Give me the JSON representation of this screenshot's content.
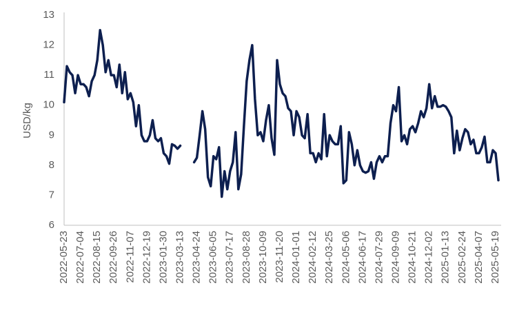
{
  "chart_data": {
    "type": "line",
    "y_label": "USD/kg",
    "categories": [
      "2022-05-23",
      null,
      null,
      null,
      null,
      null,
      "2022-07-04",
      null,
      null,
      null,
      null,
      null,
      "2022-08-15",
      null,
      null,
      null,
      null,
      null,
      "2022-09-26",
      null,
      null,
      null,
      null,
      null,
      "2022-11-07",
      null,
      null,
      null,
      null,
      null,
      "2022-12-19",
      null,
      null,
      null,
      null,
      null,
      "2023-01-30",
      null,
      null,
      null,
      null,
      null,
      "2023-03-13",
      null,
      null,
      null,
      null,
      null,
      "2023-04-24",
      null,
      null,
      null,
      null,
      null,
      "2023-06-05",
      null,
      null,
      null,
      null,
      null,
      "2023-07-17",
      null,
      null,
      null,
      null,
      null,
      "2023-08-28",
      null,
      null,
      null,
      null,
      null,
      "2023-10-09",
      null,
      null,
      null,
      null,
      null,
      "2023-11-20",
      null,
      null,
      null,
      null,
      null,
      "2024-01-01",
      null,
      null,
      null,
      null,
      null,
      "2024-02-12",
      null,
      null,
      null,
      null,
      null,
      "2024-03-25",
      null,
      null,
      null,
      null,
      null,
      "2024-05-06",
      null,
      null,
      null,
      null,
      null,
      "2024-06-17",
      null,
      null,
      null,
      null,
      null,
      "2024-07-29",
      null,
      null,
      null,
      null,
      null,
      "2024-09-09",
      null,
      null,
      null,
      null,
      null,
      "2024-10-21",
      null,
      null,
      null,
      null,
      null,
      "2024-12-02",
      null,
      null,
      null,
      null,
      null,
      "2025-01-13",
      null,
      null,
      null,
      null,
      null,
      "2025-02-24",
      null,
      null,
      null,
      null,
      null,
      "2025-04-07",
      null,
      null,
      null,
      null,
      null,
      "2025-05-19",
      null
    ],
    "series": [
      {
        "color": "#0d1f4f",
        "values": [
          10.1,
          11.3,
          11.1,
          11.0,
          10.4,
          11.0,
          10.7,
          10.7,
          10.6,
          10.3,
          10.8,
          11.0,
          11.5,
          12.5,
          12.0,
          11.1,
          11.5,
          11.0,
          11.0,
          10.6,
          11.35,
          10.4,
          11.1,
          10.2,
          10.4,
          10.1,
          9.3,
          10.0,
          9.0,
          8.8,
          8.8,
          9.0,
          9.5,
          8.9,
          8.8,
          8.9,
          8.4,
          8.3,
          8.05,
          8.7,
          8.65,
          8.55,
          8.65,
          null,
          null,
          null,
          null,
          8.1,
          8.25,
          9.0,
          9.8,
          9.2,
          7.6,
          7.3,
          8.3,
          8.2,
          8.6,
          6.95,
          7.8,
          7.2,
          7.8,
          8.1,
          9.1,
          7.2,
          7.7,
          9.3,
          10.8,
          11.5,
          12.0,
          10.2,
          9.0,
          9.1,
          8.8,
          9.5,
          10.0,
          8.9,
          8.35,
          11.5,
          10.7,
          10.4,
          10.3,
          9.9,
          9.8,
          9.0,
          9.8,
          9.6,
          9.0,
          8.9,
          9.7,
          8.4,
          8.4,
          8.1,
          8.4,
          8.2,
          9.7,
          8.3,
          9.0,
          8.8,
          8.7,
          8.7,
          9.3,
          7.4,
          7.5,
          9.1,
          8.7,
          8.0,
          8.5,
          8.0,
          7.8,
          7.75,
          7.8,
          8.1,
          7.55,
          8.1,
          8.3,
          8.1,
          8.3,
          8.3,
          9.4,
          10.0,
          9.8,
          10.6,
          8.8,
          9.0,
          8.7,
          9.2,
          9.3,
          9.1,
          9.4,
          9.8,
          9.6,
          9.9,
          10.7,
          9.9,
          10.3,
          9.95,
          9.95,
          10.0,
          9.95,
          9.8,
          9.6,
          8.4,
          9.15,
          8.5,
          8.9,
          9.2,
          9.1,
          8.7,
          8.85,
          8.4,
          8.4,
          8.6,
          8.95,
          8.1,
          8.1,
          8.5,
          8.4,
          7.5
        ]
      }
    ],
    "ylim": [
      6,
      13
    ],
    "yticks": [
      6,
      7,
      8,
      9,
      10,
      11,
      12,
      13
    ],
    "grid": false
  }
}
